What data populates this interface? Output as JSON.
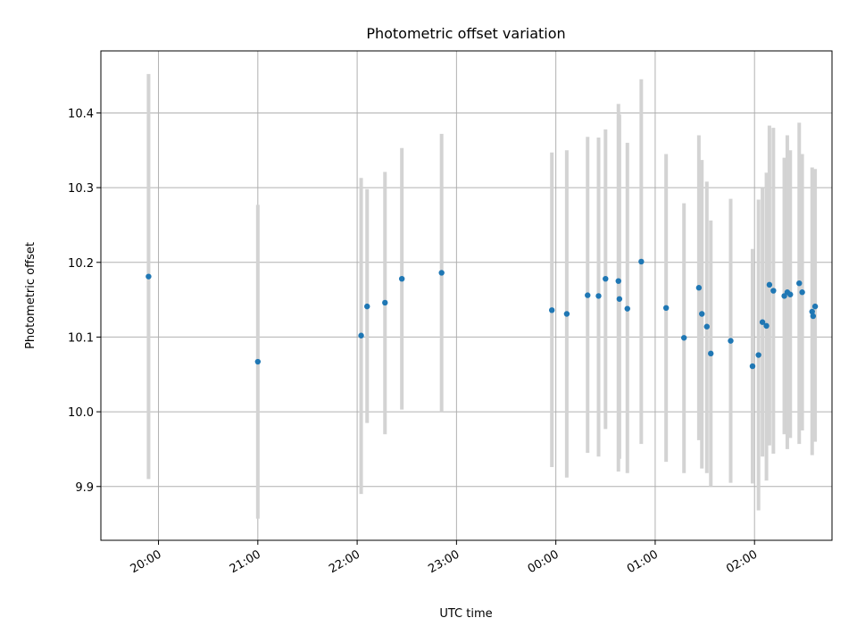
{
  "chart_data": {
    "type": "scatter",
    "title": "Photometric offset variation",
    "xlabel": "UTC time",
    "ylabel": "Photometric offset",
    "x_range_hours": [
      19.42,
      26.78
    ],
    "ylim": [
      9.828,
      10.483
    ],
    "grid": true,
    "marker_color": "#1f77b4",
    "errorbar_color": "#d3d3d3",
    "x_ticks": [
      {
        "hour": 20,
        "label": "20:00"
      },
      {
        "hour": 21,
        "label": "21:00"
      },
      {
        "hour": 22,
        "label": "22:00"
      },
      {
        "hour": 23,
        "label": "23:00"
      },
      {
        "hour": 24,
        "label": "00:00"
      },
      {
        "hour": 25,
        "label": "01:00"
      },
      {
        "hour": 26,
        "label": "02:00"
      }
    ],
    "y_ticks": [
      {
        "value": 9.9,
        "label": "9.9"
      },
      {
        "value": 10.0,
        "label": "10.0"
      },
      {
        "value": 10.1,
        "label": "10.1"
      },
      {
        "value": 10.2,
        "label": "10.2"
      },
      {
        "value": 10.3,
        "label": "10.3"
      },
      {
        "value": 10.4,
        "label": "10.4"
      }
    ],
    "points": [
      {
        "t": 19.9,
        "y": 10.181,
        "lo": 9.91,
        "hi": 10.452
      },
      {
        "t": 21.0,
        "y": 10.067,
        "lo": 9.857,
        "hi": 10.277
      },
      {
        "t": 22.04,
        "y": 10.102,
        "lo": 9.89,
        "hi": 10.313
      },
      {
        "t": 22.1,
        "y": 10.141,
        "lo": 9.985,
        "hi": 10.298
      },
      {
        "t": 22.28,
        "y": 10.146,
        "lo": 9.97,
        "hi": 10.321
      },
      {
        "t": 22.45,
        "y": 10.178,
        "lo": 10.003,
        "hi": 10.353
      },
      {
        "t": 22.85,
        "y": 10.186,
        "lo": 10.0,
        "hi": 10.372
      },
      {
        "t": 23.96,
        "y": 10.136,
        "lo": 9.926,
        "hi": 10.347
      },
      {
        "t": 24.11,
        "y": 10.131,
        "lo": 9.912,
        "hi": 10.35
      },
      {
        "t": 24.32,
        "y": 10.156,
        "lo": 9.945,
        "hi": 10.368
      },
      {
        "t": 24.43,
        "y": 10.155,
        "lo": 9.94,
        "hi": 10.367
      },
      {
        "t": 24.5,
        "y": 10.178,
        "lo": 9.977,
        "hi": 10.378
      },
      {
        "t": 24.63,
        "y": 10.175,
        "lo": 9.92,
        "hi": 10.412
      },
      {
        "t": 24.64,
        "y": 10.151,
        "lo": 9.937,
        "hi": 10.398
      },
      {
        "t": 24.72,
        "y": 10.138,
        "lo": 9.918,
        "hi": 10.36
      },
      {
        "t": 24.86,
        "y": 10.201,
        "lo": 9.957,
        "hi": 10.445
      },
      {
        "t": 25.11,
        "y": 10.139,
        "lo": 9.933,
        "hi": 10.345
      },
      {
        "t": 25.29,
        "y": 10.099,
        "lo": 9.918,
        "hi": 10.279
      },
      {
        "t": 25.44,
        "y": 10.166,
        "lo": 9.962,
        "hi": 10.37
      },
      {
        "t": 25.47,
        "y": 10.131,
        "lo": 9.924,
        "hi": 10.337
      },
      {
        "t": 25.52,
        "y": 10.114,
        "lo": 9.918,
        "hi": 10.308
      },
      {
        "t": 25.56,
        "y": 10.078,
        "lo": 9.9,
        "hi": 10.256
      },
      {
        "t": 25.76,
        "y": 10.095,
        "lo": 9.905,
        "hi": 10.285
      },
      {
        "t": 25.98,
        "y": 10.061,
        "lo": 9.904,
        "hi": 10.218
      },
      {
        "t": 26.04,
        "y": 10.076,
        "lo": 9.868,
        "hi": 10.284
      },
      {
        "t": 26.08,
        "y": 10.12,
        "lo": 9.94,
        "hi": 10.3
      },
      {
        "t": 26.12,
        "y": 10.115,
        "lo": 9.908,
        "hi": 10.32
      },
      {
        "t": 26.15,
        "y": 10.17,
        "lo": 9.955,
        "hi": 10.383
      },
      {
        "t": 26.19,
        "y": 10.162,
        "lo": 9.944,
        "hi": 10.38
      },
      {
        "t": 26.3,
        "y": 10.155,
        "lo": 9.97,
        "hi": 10.34
      },
      {
        "t": 26.33,
        "y": 10.16,
        "lo": 9.95,
        "hi": 10.37
      },
      {
        "t": 26.36,
        "y": 10.157,
        "lo": 9.965,
        "hi": 10.35
      },
      {
        "t": 26.45,
        "y": 10.172,
        "lo": 9.957,
        "hi": 10.387
      },
      {
        "t": 26.48,
        "y": 10.16,
        "lo": 9.975,
        "hi": 10.345
      },
      {
        "t": 26.58,
        "y": 10.134,
        "lo": 9.942,
        "hi": 10.327
      },
      {
        "t": 26.59,
        "y": 10.128,
        "lo": 9.965,
        "hi": 10.29
      },
      {
        "t": 26.61,
        "y": 10.141,
        "lo": 9.96,
        "hi": 10.325
      }
    ]
  }
}
